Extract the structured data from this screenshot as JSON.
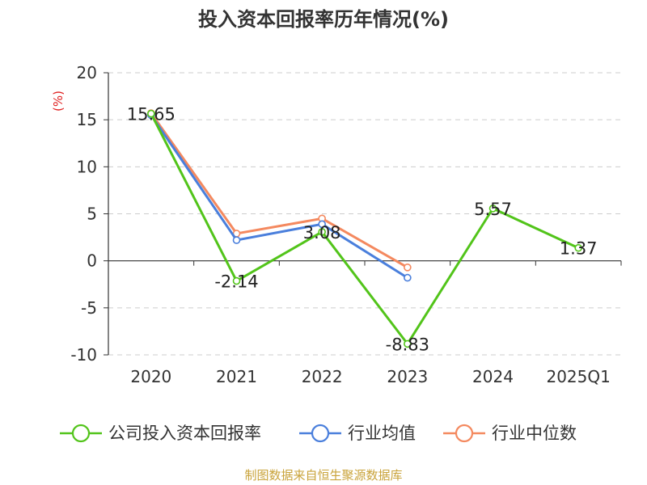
{
  "chart_data": {
    "type": "line",
    "title": "投入资本回报率历年情况(%)",
    "unit_label": "(%)",
    "categories": [
      "2020",
      "2021",
      "2022",
      "2023",
      "2024",
      "2025Q1"
    ],
    "ylim": [
      -10,
      20
    ],
    "yticks": [
      20,
      15,
      10,
      5,
      0,
      -5,
      -10
    ],
    "grid": "horizontal dashed",
    "legend_position": "bottom",
    "series": [
      {
        "name": "公司投入资本回报率",
        "color": "#52c41a",
        "values": [
          15.65,
          -2.14,
          3.08,
          -8.83,
          5.57,
          1.37
        ],
        "labels": [
          "15.65",
          "-2.14",
          "3.08",
          "-8.83",
          "5.57",
          "1.37"
        ]
      },
      {
        "name": "行业均值",
        "color": "#4a7fdc",
        "values": [
          15.5,
          2.2,
          3.9,
          -1.8,
          null,
          null
        ]
      },
      {
        "name": "行业中位数",
        "color": "#f4895f",
        "values": [
          15.7,
          2.9,
          4.5,
          -0.7,
          null,
          null
        ]
      }
    ],
    "source": "制图数据来自恒生聚源数据库"
  }
}
